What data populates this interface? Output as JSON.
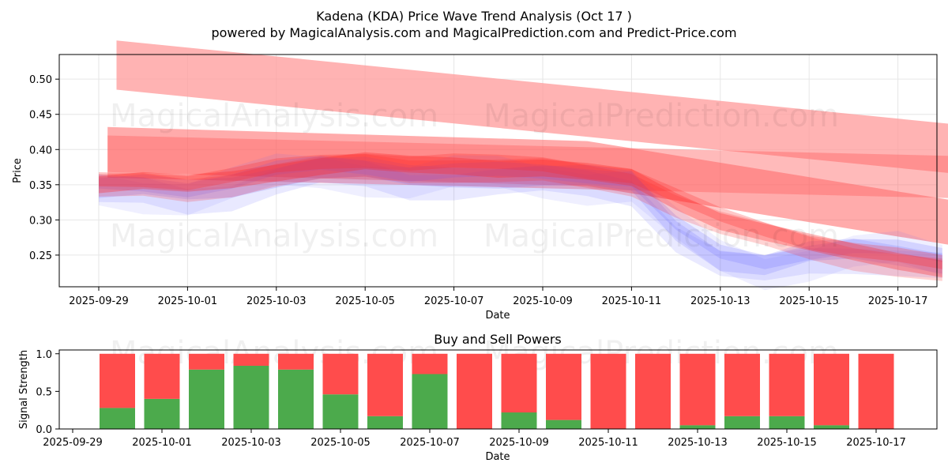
{
  "chart_data": [
    {
      "type": "area",
      "title": "Kadena (KDA) Price Wave Trend Analysis (Oct 17 )",
      "subtitle": "powered by MagicalAnalysis.com and MagicalPrediction.com and Predict-Price.com",
      "xlabel": "Date",
      "ylabel": "Price",
      "xlim": [
        "2025-09-28.2",
        "2025-10-17.8"
      ],
      "ylim": [
        0.205,
        0.535
      ],
      "x_ticks": [
        "2025-09-29",
        "2025-10-01",
        "2025-10-03",
        "2025-10-05",
        "2025-10-07",
        "2025-10-09",
        "2025-10-11",
        "2025-10-13",
        "2025-10-15",
        "2025-10-17"
      ],
      "y_ticks": [
        "0.25",
        "0.30",
        "0.35",
        "0.40",
        "0.45",
        "0.50"
      ],
      "grid": true,
      "day_offsets": [
        0,
        1,
        2,
        3,
        4,
        5,
        6,
        7,
        8,
        9,
        10,
        11,
        12,
        13,
        14,
        15,
        16,
        17,
        18,
        19
      ],
      "blue_band_center": [
        0.345,
        0.345,
        0.34,
        0.35,
        0.365,
        0.372,
        0.37,
        0.362,
        0.365,
        0.363,
        0.36,
        0.358,
        0.355,
        0.29,
        0.245,
        0.232,
        0.25,
        0.26,
        0.255,
        0.24
      ],
      "red_band_center": [
        0.35,
        0.352,
        0.35,
        0.36,
        0.37,
        0.375,
        0.38,
        0.378,
        0.38,
        0.375,
        0.372,
        0.365,
        0.36,
        0.33,
        0.3,
        0.28,
        0.265,
        0.255,
        0.245,
        0.232
      ],
      "trend_bands": [
        {
          "name": "upper-trend",
          "start": [
            0.4,
            0.52
          ],
          "end": [
            19.8,
            0.3975
          ]
        },
        {
          "name": "mid-trend",
          "start": [
            0.2,
            0.39
          ],
          "end": [
            19.8,
            0.36
          ]
        },
        {
          "name": "wave-trend",
          "start": [
            0.2,
            0.4
          ],
          "mid": [
            11.0,
            0.38
          ],
          "end": [
            19.8,
            0.29
          ]
        }
      ],
      "watermarks": [
        "MagicalAnalysis.com",
        "MagicalPrediction.com"
      ]
    },
    {
      "type": "bar",
      "title": "Buy and Sell Powers",
      "xlabel": "Date",
      "ylabel": "Signal Strength",
      "ylim": [
        0,
        1.05
      ],
      "y_ticks": [
        "0.0",
        "0.5",
        "1.0"
      ],
      "x_ticks": [
        "2025-09-29",
        "2025-10-01",
        "2025-10-03",
        "2025-10-05",
        "2025-10-07",
        "2025-10-09",
        "2025-10-11",
        "2025-10-13",
        "2025-10-15",
        "2025-10-17"
      ],
      "categories": [
        "2025-09-30",
        "2025-10-01",
        "2025-10-02",
        "2025-10-03",
        "2025-10-04",
        "2025-10-05",
        "2025-10-06",
        "2025-10-07",
        "2025-10-08",
        "2025-10-09",
        "2025-10-10",
        "2025-10-11",
        "2025-10-12",
        "2025-10-13",
        "2025-10-14",
        "2025-10-15",
        "2025-10-16",
        "2025-10-17"
      ],
      "series": [
        {
          "name": "Buy",
          "color": "#4caa4c",
          "values": [
            0.28,
            0.4,
            0.79,
            0.84,
            0.79,
            0.46,
            0.17,
            0.73,
            0.0,
            0.22,
            0.12,
            0.0,
            0.0,
            0.05,
            0.17,
            0.17,
            0.05,
            0.0
          ]
        },
        {
          "name": "Sell",
          "color": "#ff4c4c",
          "values": [
            0.72,
            0.6,
            0.21,
            0.16,
            0.21,
            0.54,
            0.83,
            0.27,
            1.0,
            0.78,
            0.88,
            1.0,
            1.0,
            0.95,
            0.83,
            0.83,
            0.95,
            1.0
          ]
        }
      ],
      "watermarks": [
        "MagicalAnalysis.com",
        "MagicalPrediction.com"
      ]
    }
  ]
}
